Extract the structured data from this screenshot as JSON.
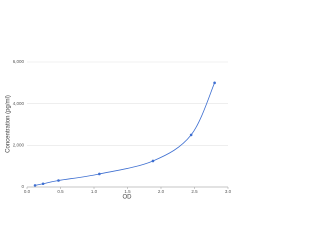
{
  "chart_data": {
    "type": "scatter",
    "x_label": "OD",
    "y_label": "Concentration (pg/ml)",
    "series": [
      {
        "color": "#3e6fd1",
        "x": [
          0.12,
          0.24,
          0.47,
          1.08,
          1.88,
          2.45,
          2.8
        ],
        "values": [
          78,
          156,
          312,
          625,
          1250,
          2500,
          5000
        ]
      }
    ],
    "xlim": [
      0,
      3
    ],
    "xticks": [
      {
        "value": 0,
        "label": "0.0"
      },
      0.5,
      {
        "value": 1,
        "label": "1.0"
      },
      1.5,
      {
        "value": 2,
        "label": "2.0"
      },
      2.5,
      {
        "value": 3,
        "label": "3.0"
      }
    ],
    "ylim": [
      0,
      6000
    ],
    "yticks": [
      0,
      {
        "value": 2000,
        "label": "2,000"
      },
      {
        "value": 4000,
        "label": "4,000"
      },
      {
        "value": 6000,
        "label": "6,000"
      }
    ],
    "grid": true,
    "smooth": true
  }
}
